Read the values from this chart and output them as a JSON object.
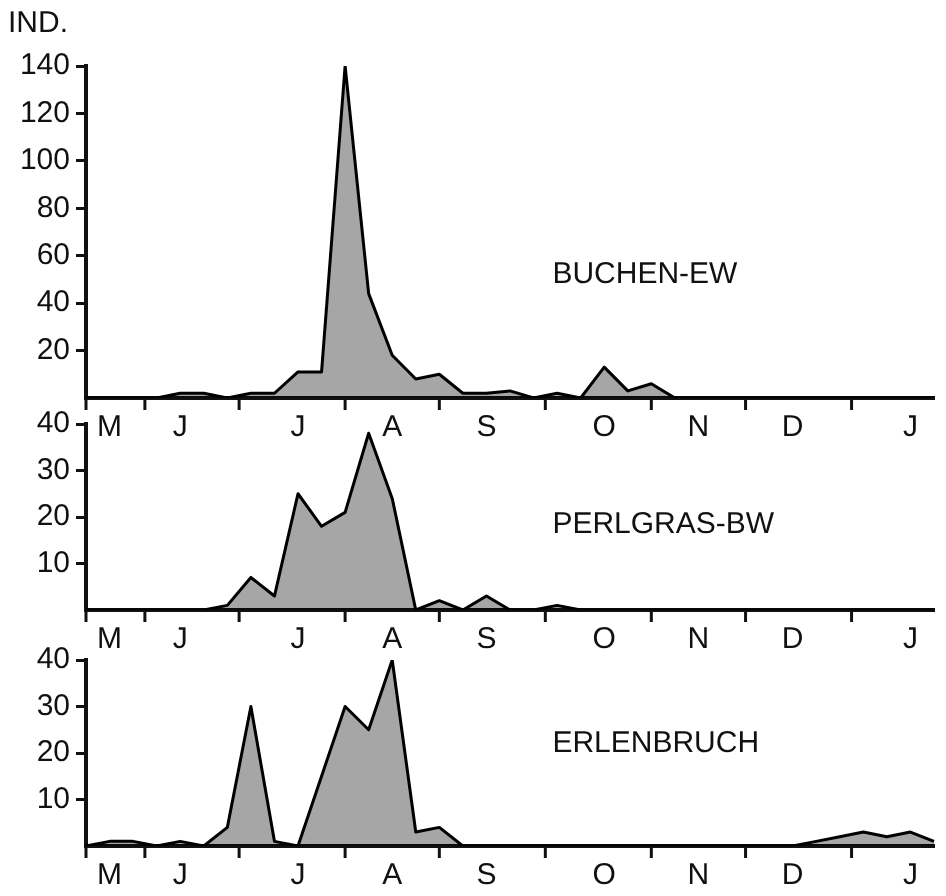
{
  "chart_data": [
    {
      "type": "area",
      "ylabel": "IND.",
      "ylim": [
        0,
        140
      ],
      "yticks": [
        20,
        40,
        60,
        80,
        100,
        120,
        140
      ],
      "categories": [
        null,
        "M",
        null,
        null,
        "J",
        null,
        null,
        null,
        null,
        "J",
        null,
        null,
        null,
        "A",
        null,
        null,
        null,
        "S",
        null,
        null,
        null,
        null,
        "O",
        null,
        null,
        null,
        "N",
        null,
        null,
        null,
        "D",
        null,
        null,
        null,
        null,
        "J",
        null
      ],
      "series": [
        {
          "name": "BUCHEN-EW",
          "color": "#000000",
          "values": [
            0,
            0,
            0,
            0,
            2,
            2,
            0,
            2,
            2,
            11,
            11,
            140,
            44,
            18,
            8,
            10,
            2,
            2,
            3,
            0,
            2,
            0,
            13,
            3,
            6,
            0,
            0,
            0,
            0,
            0,
            0,
            0,
            0,
            0,
            0,
            0,
            0
          ]
        }
      ]
    },
    {
      "type": "area",
      "ylim": [
        0,
        40
      ],
      "yticks": [
        10,
        20,
        30,
        40
      ],
      "categories": [
        null,
        "M",
        null,
        null,
        "J",
        null,
        null,
        null,
        null,
        "J",
        null,
        null,
        null,
        "A",
        null,
        null,
        null,
        "S",
        null,
        null,
        null,
        null,
        "O",
        null,
        null,
        null,
        "N",
        null,
        null,
        null,
        "D",
        null,
        null,
        null,
        null,
        "J",
        null
      ],
      "series": [
        {
          "name": "PERLGRAS-BW",
          "color": "#000000",
          "values": [
            0,
            0,
            0,
            0,
            0,
            0,
            1,
            7,
            3,
            25,
            18,
            21,
            38,
            24,
            0,
            2,
            0,
            3,
            0,
            0,
            1,
            0,
            0,
            0,
            0,
            0,
            0,
            0,
            0,
            0,
            0,
            0,
            0,
            0,
            0,
            0,
            0
          ]
        }
      ]
    },
    {
      "type": "area",
      "ylim": [
        0,
        40
      ],
      "yticks": [
        10,
        20,
        30,
        40
      ],
      "categories": [
        null,
        "M",
        null,
        null,
        "J",
        null,
        null,
        null,
        null,
        "J",
        null,
        null,
        null,
        "A",
        null,
        null,
        null,
        "S",
        null,
        null,
        null,
        null,
        "O",
        null,
        null,
        null,
        "N",
        null,
        null,
        null,
        "D",
        null,
        null,
        null,
        null,
        "J",
        null
      ],
      "series": [
        {
          "name": "ERLENBRUCH",
          "color": "#000000",
          "values": [
            0,
            1,
            1,
            0,
            1,
            0,
            4,
            30,
            1,
            0,
            15,
            30,
            25,
            40,
            3,
            4,
            0,
            0,
            0,
            0,
            0,
            0,
            0,
            0,
            0,
            0,
            0,
            0,
            0,
            0,
            0,
            1,
            2,
            3,
            2,
            3,
            1
          ]
        }
      ]
    }
  ]
}
